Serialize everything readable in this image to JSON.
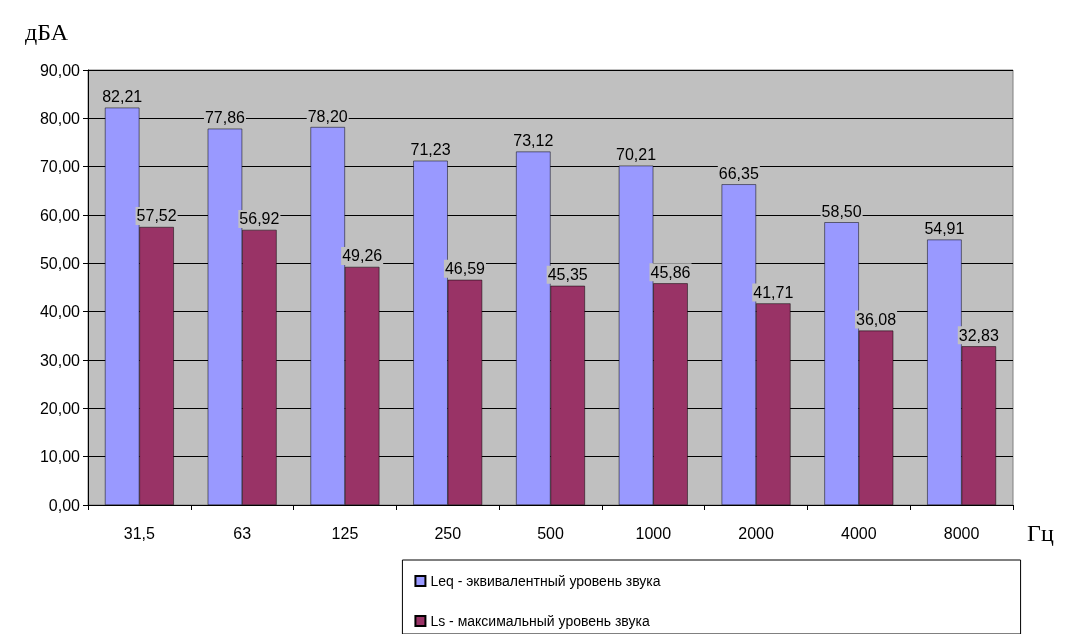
{
  "chart_data": {
    "type": "bar",
    "ylabel": "дБА",
    "xlabel": "Гц",
    "categories": [
      "31,5",
      "63",
      "125",
      "250",
      "500",
      "1000",
      "2000",
      "4000",
      "8000"
    ],
    "series": [
      {
        "name": "Leq - эквивалентный уровень звука",
        "color": "#9999ff",
        "values": [
          82.21,
          77.86,
          78.2,
          71.23,
          73.12,
          70.21,
          66.35,
          58.5,
          54.91
        ],
        "value_labels": [
          "82,21",
          "77,86",
          "78,20",
          "71,23",
          "73,12",
          "70,21",
          "66,35",
          "58,50",
          "54,91"
        ]
      },
      {
        "name": "Ls - максимальный уровень звука",
        "color": "#993366",
        "values": [
          57.52,
          56.92,
          49.26,
          46.59,
          45.35,
          45.86,
          41.71,
          36.08,
          32.83
        ],
        "value_labels": [
          "57,52",
          "56,92",
          "49,26",
          "46,59",
          "45,35",
          "45,86",
          "41,71",
          "36,08",
          "32,83"
        ]
      }
    ],
    "ylim": [
      0,
      90
    ],
    "yticks": [
      {
        "value": 0,
        "label": "0,00"
      },
      {
        "value": 10,
        "label": "10,00"
      },
      {
        "value": 20,
        "label": "20,00"
      },
      {
        "value": 30,
        "label": "30,00"
      },
      {
        "value": 40,
        "label": "40,00"
      },
      {
        "value": 50,
        "label": "50,00"
      },
      {
        "value": 60,
        "label": "60,00"
      },
      {
        "value": 70,
        "label": "70,00"
      },
      {
        "value": 80,
        "label": "80,00"
      },
      {
        "value": 90,
        "label": "90,00"
      }
    ],
    "grid": "y",
    "legend": "bottom"
  }
}
